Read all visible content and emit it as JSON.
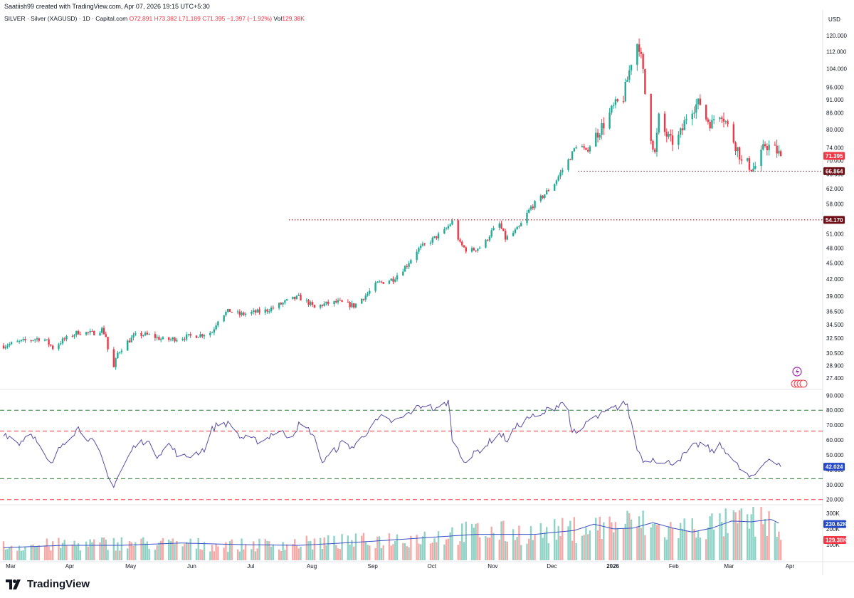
{
  "attribution": "Saatiish99 created with TradingView.com, Apr 07, 2026 19:15 UTC+5:30",
  "header": {
    "symbol": "SILVER · Silver (XAGUSD) · 1D · Capital.com",
    "open": "O72.891",
    "high": "H73.382",
    "low": "L71.189",
    "close": "C71.395",
    "change": "−1.397 (−1.92%)",
    "vol_label": "Vol",
    "vol": "129.38K"
  },
  "currency": "USD",
  "brand": "TradingView",
  "colors": {
    "up": "#22ab94",
    "down": "#f23645",
    "rsi": "#5b4ba8",
    "vol_ma": "#3a52c4",
    "tag_dark": "#6e0f17",
    "tag_red": "#f23645",
    "tag_blue": "#2448c8"
  },
  "chart_data": [
    {
      "type": "candlestick",
      "title": "SILVER · Silver (XAGUSD) · 1D · Capital.com",
      "scale": "log",
      "ylim": [
        26.8,
        123
      ],
      "price_ticks": [
        "120.000",
        "112.000",
        "104.000",
        "96.000",
        "91.000",
        "86.000",
        "80.000",
        "74.000",
        "70.000",
        "66.000",
        "62.000",
        "58.000",
        "54.000",
        "51.000",
        "48.000",
        "45.000",
        "42.000",
        "39.000",
        "36.500",
        "34.500",
        "32.500",
        "30.500",
        "28.900",
        "27.400"
      ],
      "month_labels": [
        "Mar",
        "Apr",
        "May",
        "Jun",
        "Jul",
        "Aug",
        "Sep",
        "Oct",
        "Nov",
        "Dec",
        "2026",
        "Feb",
        "Mar",
        "Apr"
      ],
      "month_start_day": [
        0,
        30,
        61,
        92,
        122,
        153,
        184,
        214,
        245,
        275,
        306,
        337,
        365,
        396
      ],
      "last_day": 402,
      "last_price": {
        "value": 71.395,
        "label": "71.395"
      },
      "levels": [
        {
          "value": 66.864,
          "label": "66.864",
          "from_day": 292
        },
        {
          "value": 54.17,
          "label": "54.170",
          "from_day": 145
        }
      ],
      "price_path": [
        [
          0,
          31.5
        ],
        [
          10,
          32.1
        ],
        [
          20,
          32.6
        ],
        [
          25,
          31.2
        ],
        [
          30,
          32.2
        ],
        [
          38,
          33.4
        ],
        [
          45,
          33.2
        ],
        [
          50,
          33.8
        ],
        [
          52,
          32.8
        ],
        [
          54,
          29.2
        ],
        [
          56,
          28.6
        ],
        [
          58,
          30.5
        ],
        [
          62,
          31.8
        ],
        [
          68,
          33.1
        ],
        [
          75,
          32.9
        ],
        [
          82,
          32.2
        ],
        [
          90,
          32.6
        ],
        [
          100,
          33.0
        ],
        [
          106,
          33.4
        ],
        [
          110,
          35.9
        ],
        [
          115,
          36.6
        ],
        [
          120,
          36.0
        ],
        [
          126,
          36.3
        ],
        [
          132,
          36.5
        ],
        [
          138,
          37.2
        ],
        [
          145,
          38.3
        ],
        [
          150,
          38.8
        ],
        [
          155,
          37.9
        ],
        [
          158,
          37.0
        ],
        [
          162,
          37.6
        ],
        [
          170,
          38.0
        ],
        [
          178,
          37.4
        ],
        [
          185,
          39.4
        ],
        [
          190,
          41.2
        ],
        [
          198,
          42.0
        ],
        [
          205,
          44.6
        ],
        [
          210,
          47.5
        ],
        [
          218,
          49.8
        ],
        [
          224,
          51.6
        ],
        [
          228,
          53.8
        ],
        [
          232,
          48.8
        ],
        [
          236,
          47.3
        ],
        [
          240,
          47.8
        ],
        [
          244,
          48.6
        ],
        [
          248,
          51.5
        ],
        [
          252,
          53.2
        ],
        [
          255,
          50.0
        ],
        [
          258,
          50.8
        ],
        [
          262,
          52.4
        ],
        [
          268,
          57.2
        ],
        [
          274,
          60.0
        ],
        [
          280,
          63.5
        ],
        [
          288,
          71.0
        ],
        [
          292,
          76.0
        ],
        [
          296,
          72.5
        ],
        [
          300,
          77.0
        ],
        [
          306,
          83.0
        ],
        [
          310,
          88.0
        ],
        [
          315,
          92.0
        ],
        [
          318,
          103.0
        ],
        [
          320,
          112.0
        ],
        [
          322,
          116.0
        ],
        [
          323,
          115.0
        ],
        [
          325,
          102.0
        ],
        [
          327,
          85.0
        ],
        [
          329,
          78.0
        ],
        [
          331,
          72.0
        ],
        [
          333,
          84.0
        ],
        [
          336,
          79.0
        ],
        [
          339,
          76.0
        ],
        [
          342,
          76.0
        ],
        [
          345,
          80.0
        ],
        [
          348,
          87.0
        ],
        [
          352,
          89.0
        ],
        [
          355,
          90.0
        ],
        [
          357,
          84.0
        ],
        [
          360,
          82.0
        ],
        [
          362,
          86.0
        ],
        [
          365,
          86.0
        ],
        [
          368,
          81.0
        ],
        [
          371,
          76.5
        ],
        [
          374,
          72.0
        ],
        [
          376,
          66.5
        ],
        [
          378,
          69.0
        ],
        [
          381,
          67.5
        ],
        [
          384,
          70.0
        ],
        [
          387,
          75.0
        ],
        [
          390,
          74.0
        ],
        [
          393,
          72.8
        ],
        [
          395,
          71.4
        ]
      ],
      "volume_axis": {
        "ticks": [
          "300K",
          "200K",
          "100K"
        ],
        "ma_value": {
          "value": 230620,
          "label": "230.62K"
        },
        "last_value": {
          "value": 129380,
          "label": "129.38K"
        },
        "ymax": 340000
      },
      "volume_path": [
        [
          0,
          90000
        ],
        [
          60,
          110000
        ],
        [
          120,
          95000
        ],
        [
          180,
          120000
        ],
        [
          215,
          150000
        ],
        [
          240,
          180000
        ],
        [
          270,
          170000
        ],
        [
          300,
          210000
        ],
        [
          322,
          240000
        ],
        [
          336,
          190000
        ],
        [
          360,
          220000
        ],
        [
          380,
          250000
        ],
        [
          393,
          230000
        ],
        [
          395,
          129380
        ]
      ],
      "volume_ma_path": [
        [
          0,
          80000
        ],
        [
          30,
          95000
        ],
        [
          60,
          95000
        ],
        [
          90,
          110000
        ],
        [
          120,
          100000
        ],
        [
          150,
          95000
        ],
        [
          180,
          115000
        ],
        [
          210,
          140000
        ],
        [
          240,
          165000
        ],
        [
          270,
          165000
        ],
        [
          290,
          190000
        ],
        [
          300,
          230000
        ],
        [
          310,
          200000
        ],
        [
          320,
          205000
        ],
        [
          330,
          240000
        ],
        [
          340,
          205000
        ],
        [
          350,
          180000
        ],
        [
          360,
          205000
        ],
        [
          370,
          250000
        ],
        [
          380,
          245000
        ],
        [
          390,
          260000
        ],
        [
          395,
          230620
        ]
      ]
    },
    {
      "type": "line",
      "title": "",
      "ylim": [
        17,
        93
      ],
      "y_ticks": [
        "90.000",
        "80.000",
        "70.000",
        "60.000",
        "50.000",
        "40.000",
        "30.000",
        "20.000"
      ],
      "levels": [
        {
          "value": 80
        },
        {
          "value": 66
        },
        {
          "value": 34
        },
        {
          "value": 20
        }
      ],
      "last_value": {
        "value": 42.024,
        "label": "42.024"
      },
      "series": [
        {
          "values_path": [
            [
              0,
              65
            ],
            [
              8,
              58
            ],
            [
              14,
              66
            ],
            [
              20,
              50
            ],
            [
              24,
              43
            ],
            [
              30,
              58
            ],
            [
              38,
              68
            ],
            [
              44,
              60
            ],
            [
              48,
              55
            ],
            [
              50,
              46
            ],
            [
              52,
              40
            ],
            [
              54,
              30
            ],
            [
              55,
              28
            ],
            [
              58,
              35
            ],
            [
              62,
              45
            ],
            [
              66,
              55
            ],
            [
              72,
              60
            ],
            [
              78,
              50
            ],
            [
              84,
              57
            ],
            [
              90,
              48
            ],
            [
              96,
              50
            ],
            [
              102,
              54
            ],
            [
              106,
              67
            ],
            [
              110,
              72
            ],
            [
              116,
              70
            ],
            [
              120,
              62
            ],
            [
              126,
              60
            ],
            [
              132,
              59
            ],
            [
              136,
              64
            ],
            [
              140,
              66
            ],
            [
              146,
              62
            ],
            [
              150,
              70
            ],
            [
              156,
              66
            ],
            [
              160,
              55
            ],
            [
              162,
              45
            ],
            [
              166,
              50
            ],
            [
              172,
              58
            ],
            [
              178,
              55
            ],
            [
              186,
              68
            ],
            [
              192,
              75
            ],
            [
              198,
              72
            ],
            [
              204,
              76
            ],
            [
              208,
              80
            ],
            [
              214,
              84
            ],
            [
              220,
              80
            ],
            [
              224,
              84
            ],
            [
              226,
              86
            ],
            [
              228,
              62
            ],
            [
              232,
              50
            ],
            [
              236,
              45
            ],
            [
              240,
              52
            ],
            [
              244,
              55
            ],
            [
              248,
              60
            ],
            [
              252,
              64
            ],
            [
              256,
              60
            ],
            [
              260,
              68
            ],
            [
              264,
              72
            ],
            [
              268,
              76
            ],
            [
              272,
              74
            ],
            [
              276,
              80
            ],
            [
              280,
              82
            ],
            [
              284,
              86
            ],
            [
              286,
              88
            ],
            [
              288,
              70
            ],
            [
              292,
              60
            ],
            [
              296,
              72
            ],
            [
              300,
              74
            ],
            [
              304,
              77
            ],
            [
              308,
              80
            ],
            [
              312,
              82
            ],
            [
              315,
              86
            ],
            [
              317,
              82
            ],
            [
              320,
              66
            ],
            [
              322,
              54
            ],
            [
              326,
              45
            ],
            [
              330,
              48
            ],
            [
              336,
              44
            ],
            [
              342,
              46
            ],
            [
              346,
              50
            ],
            [
              350,
              55
            ],
            [
              355,
              58
            ],
            [
              360,
              52
            ],
            [
              364,
              56
            ],
            [
              368,
              52
            ],
            [
              372,
              44
            ],
            [
              376,
              38
            ],
            [
              380,
              34
            ],
            [
              384,
              40
            ],
            [
              388,
              48
            ],
            [
              392,
              45
            ],
            [
              395,
              42
            ]
          ]
        }
      ]
    }
  ]
}
